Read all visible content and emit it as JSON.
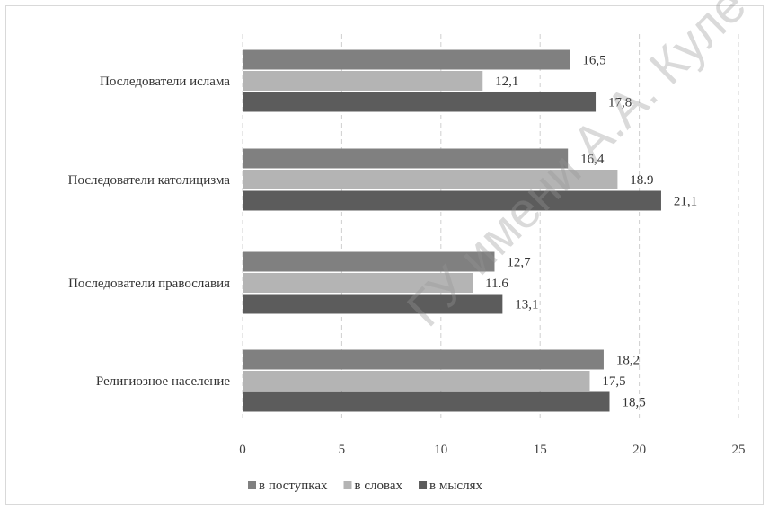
{
  "chart_data": {
    "type": "bar",
    "orientation": "horizontal",
    "categories": [
      "Последователи ислама",
      "Последователи католицизма",
      "Последователи православия",
      "Религиозное население"
    ],
    "category_labels": [
      "Последователи ислама",
      "Последователи католицизма",
      "Последователи православия",
      "Религиозное население"
    ],
    "series": [
      {
        "name": "в поступках",
        "color": "#808080",
        "values": [
          16.5,
          16.4,
          12.7,
          18.2
        ],
        "labels": [
          "16,5",
          "16,4",
          "12,7",
          "18,2"
        ]
      },
      {
        "name": "в словах",
        "color": "#b4b4b4",
        "values": [
          12.1,
          18.9,
          11.6,
          17.5
        ],
        "labels": [
          "12,1",
          "18.9",
          "11.6",
          "17,5"
        ]
      },
      {
        "name": "в мыслях",
        "color": "#5c5c5c",
        "values": [
          17.8,
          21.1,
          13.1,
          18.5
        ],
        "labels": [
          "17,8",
          "21,1",
          "13,1",
          "18,5"
        ]
      }
    ],
    "xlim": [
      0,
      25
    ],
    "xticks": [
      0,
      5,
      10,
      15,
      20,
      25
    ],
    "xtick_labels": [
      "0",
      "5",
      "10",
      "15",
      "20",
      "25"
    ],
    "grid": true,
    "legend_position": "bottom"
  },
  "watermark": "ГУ имени А.А. Куле"
}
